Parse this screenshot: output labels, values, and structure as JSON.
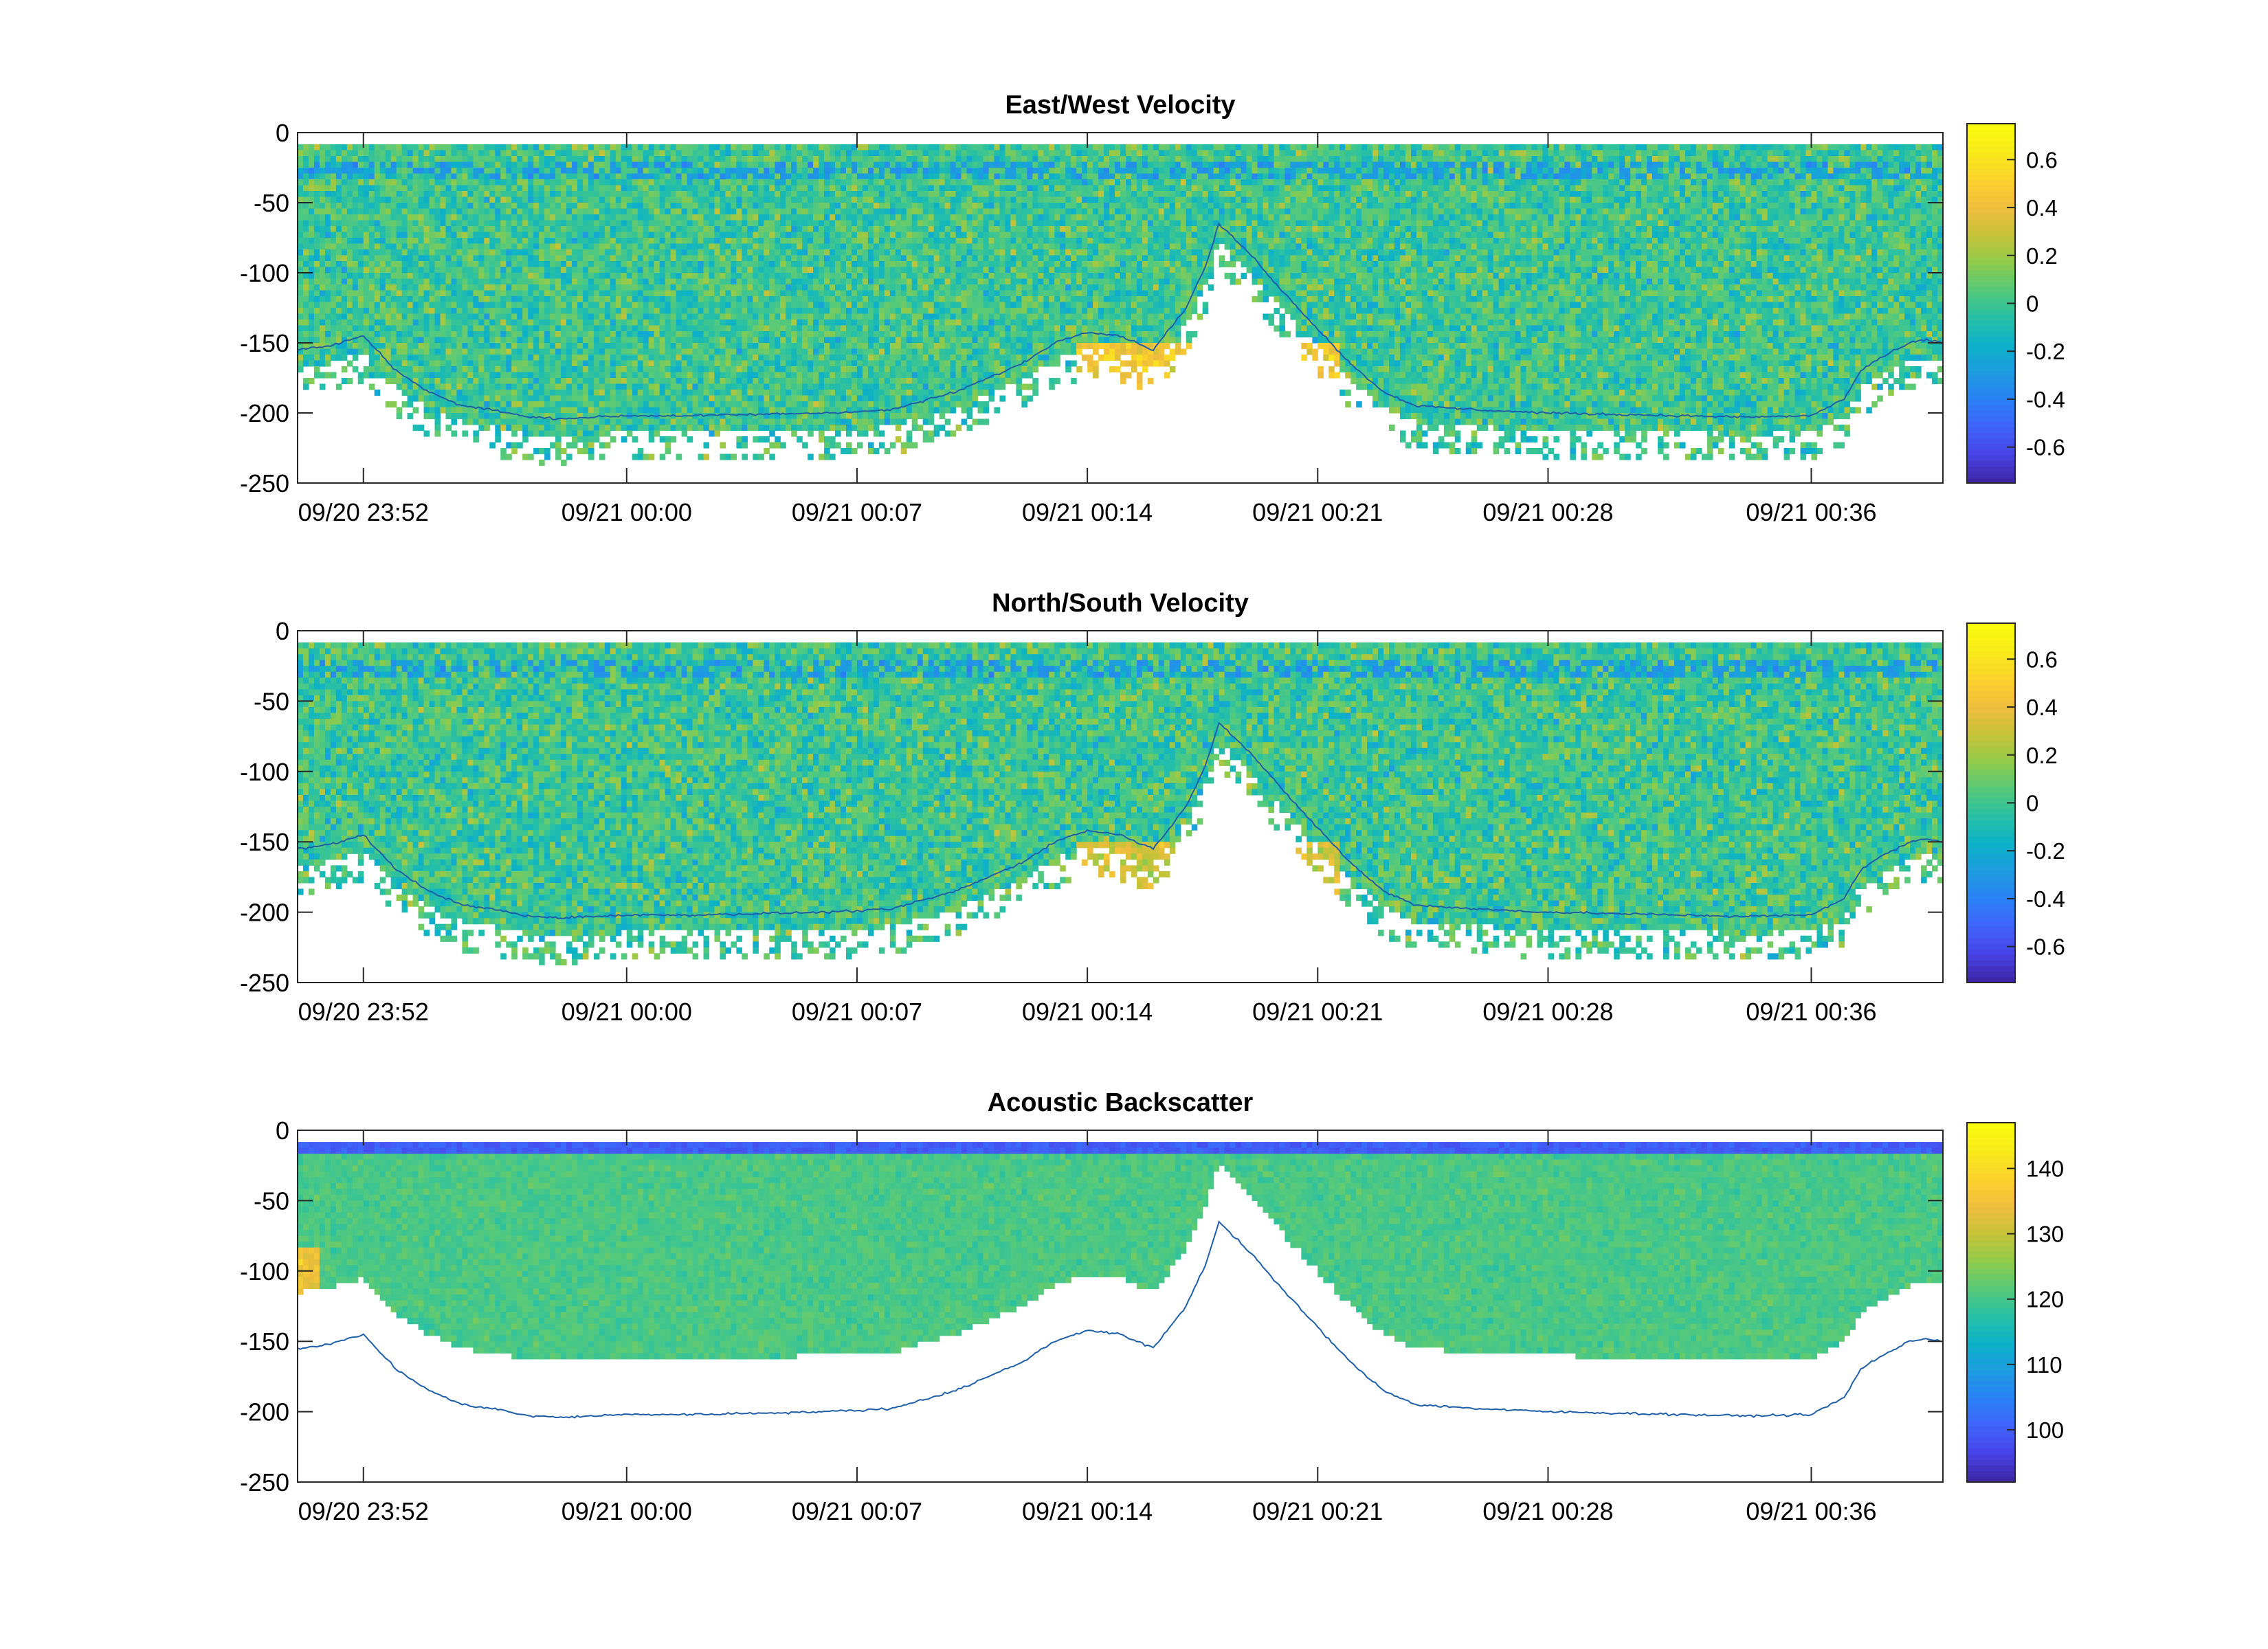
{
  "figure": {
    "x_tick_labels": [
      "09/20 23:52",
      "09/21 00:00",
      "09/21 00:07",
      "09/21 00:14",
      "09/21 00:21",
      "09/21 00:28",
      "09/21 00:36"
    ],
    "y_tick_labels": [
      "0",
      "-50",
      "-100",
      "-150",
      "-200",
      "-250"
    ]
  },
  "chart_data": [
    {
      "type": "heatmap",
      "title": "East/West Velocity",
      "xlabel": "",
      "ylabel": "",
      "x_range": [
        "09/20 23:50",
        "09/21 00:40"
      ],
      "ylim": [
        -250,
        0
      ],
      "clim": [
        -0.75,
        0.75
      ],
      "colormap": "parula",
      "colorbar_ticks": [
        "0.6",
        "0.4",
        "0.2",
        "0",
        "-0.2",
        "-0.4",
        "-0.6"
      ],
      "overlay_line": "bottom depth",
      "line_color": "#1f5fa8"
    },
    {
      "type": "heatmap",
      "title": "North/South Velocity",
      "xlabel": "",
      "ylabel": "",
      "x_range": [
        "09/20 23:50",
        "09/21 00:40"
      ],
      "ylim": [
        -250,
        0
      ],
      "clim": [
        -0.75,
        0.75
      ],
      "colormap": "parula",
      "colorbar_ticks": [
        "0.6",
        "0.4",
        "0.2",
        "0",
        "-0.2",
        "-0.4",
        "-0.6"
      ],
      "overlay_line": "bottom depth",
      "line_color": "#1f5fa8"
    },
    {
      "type": "heatmap",
      "title": "Acoustic Backscatter",
      "xlabel": "",
      "ylabel": "",
      "x_range": [
        "09/20 23:50",
        "09/21 00:40"
      ],
      "ylim": [
        -250,
        0
      ],
      "clim": [
        92,
        147
      ],
      "colormap": "parula",
      "colorbar_ticks": [
        "140",
        "130",
        "120",
        "110",
        "100"
      ],
      "overlay_line": "bottom depth",
      "line_color": "#1f5fa8"
    }
  ],
  "bottom_depth": {
    "time_min": [
      0,
      1,
      2,
      3,
      4,
      5,
      6,
      7,
      8,
      9,
      10,
      12,
      14,
      16,
      18,
      20,
      21,
      22,
      23,
      24,
      25,
      26,
      27,
      27.6,
      28,
      29,
      30,
      31,
      32,
      33,
      34,
      36,
      38,
      40,
      42,
      44,
      46,
      47,
      47.5,
      48,
      49,
      49.5,
      50
    ],
    "depth_m": [
      -155,
      -152,
      -145,
      -170,
      -185,
      -195,
      -198,
      -203,
      -204,
      -203,
      -202,
      -202,
      -201,
      -200,
      -198,
      -185,
      -175,
      -165,
      -150,
      -142,
      -145,
      -155,
      -125,
      -95,
      -65,
      -88,
      -115,
      -140,
      -165,
      -185,
      -195,
      -198,
      -200,
      -201,
      -202,
      -203,
      -202,
      -190,
      -170,
      -162,
      -150,
      -148,
      -150
    ]
  },
  "colors": {
    "parula": [
      "#3e26a8",
      "#4744e8",
      "#3f64fa",
      "#2a81f6",
      "#1d9ce0",
      "#0cb1c8",
      "#27c0a5",
      "#56ca7b",
      "#8fcb4b",
      "#c5c339",
      "#efbd3d",
      "#fbd12e",
      "#f8e91b",
      "#f9fb0e"
    ]
  }
}
